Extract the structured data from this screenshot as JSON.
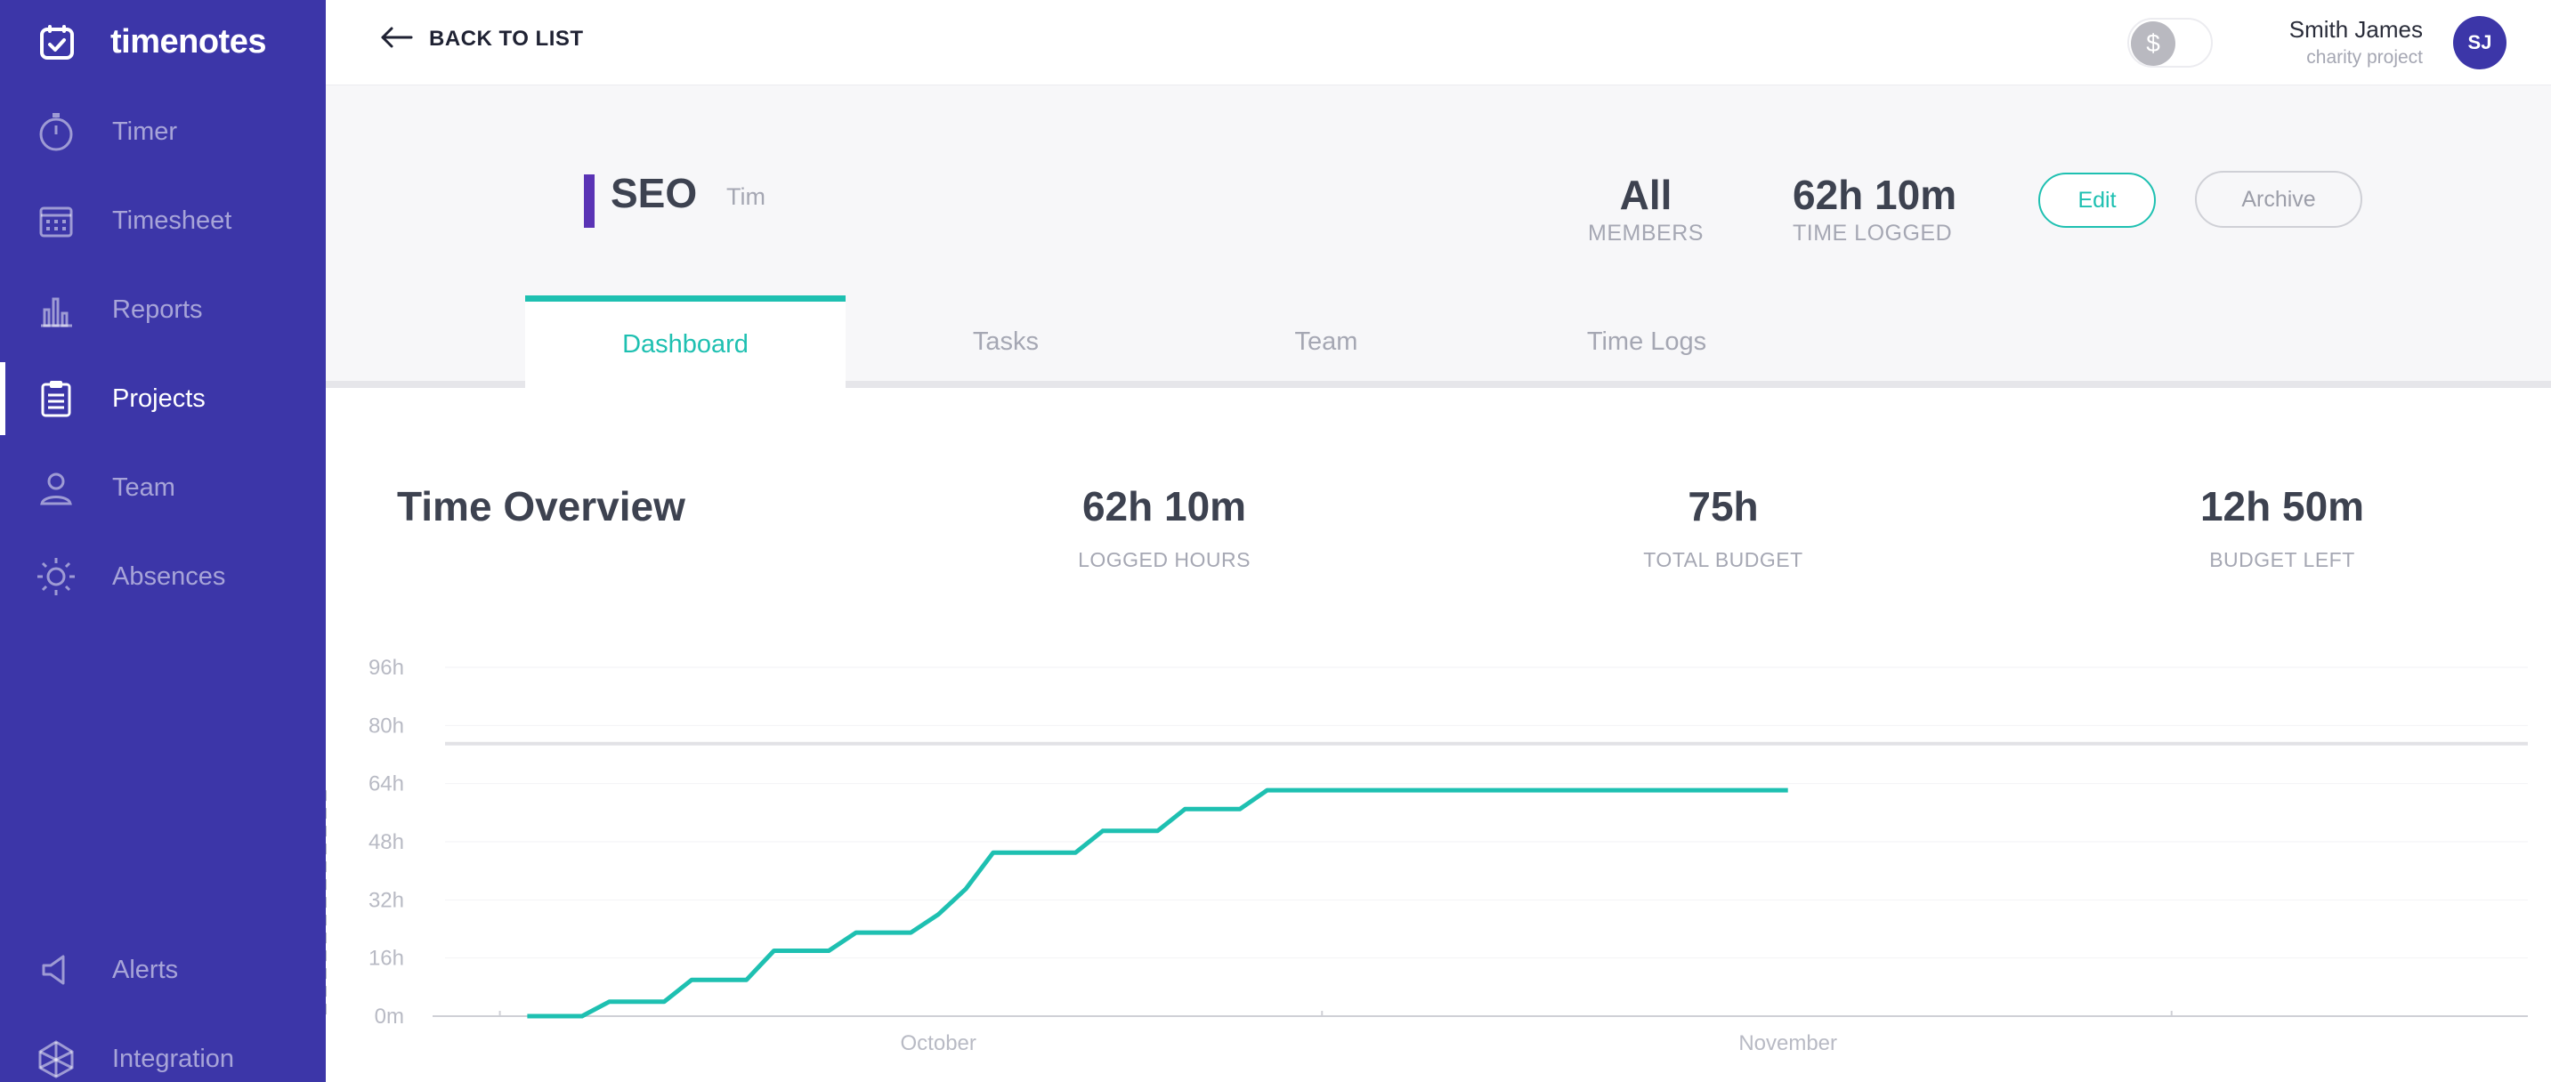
{
  "app": {
    "name": "timenotes"
  },
  "sidebar": {
    "items": [
      {
        "label": "Timer",
        "icon": "stopwatch-icon",
        "active": false
      },
      {
        "label": "Timesheet",
        "icon": "calendar-icon",
        "active": false
      },
      {
        "label": "Reports",
        "icon": "bar-chart-icon",
        "active": false
      },
      {
        "label": "Projects",
        "icon": "clipboard-icon",
        "active": true
      },
      {
        "label": "Team",
        "icon": "person-icon",
        "active": false
      },
      {
        "label": "Absences",
        "icon": "sun-icon",
        "active": false
      }
    ],
    "bottom_items": [
      {
        "label": "Alerts",
        "icon": "megaphone-icon"
      },
      {
        "label": "Integration",
        "icon": "integration-icon"
      }
    ]
  },
  "topbar": {
    "back_label": "BACK TO LIST",
    "billable_toggle": {
      "symbol": "$",
      "on": false
    },
    "user": {
      "name": "Smith James",
      "subtitle": "charity project",
      "initials": "SJ"
    }
  },
  "project": {
    "name": "SEO",
    "client": "Tim",
    "color": "#5a33b5",
    "members_value": "All",
    "members_label": "MEMBERS",
    "logged_value": "62h 10m",
    "logged_label": "TIME LOGGED",
    "edit_label": "Edit",
    "archive_label": "Archive"
  },
  "tabs": [
    {
      "label": "Dashboard",
      "active": true
    },
    {
      "label": "Tasks",
      "active": false
    },
    {
      "label": "Team",
      "active": false
    },
    {
      "label": "Time Logs",
      "active": false
    }
  ],
  "overview": {
    "title": "Time Overview",
    "metrics": [
      {
        "value": "62h 10m",
        "label": "LOGGED HOURS"
      },
      {
        "value": "75h",
        "label": "TOTAL BUDGET"
      },
      {
        "value": "12h 50m",
        "label": "BUDGET LEFT"
      }
    ]
  },
  "colors": {
    "sidebar": "#3c36a8",
    "accent": "#1ec0b1",
    "budget_line": "#e2e2e6"
  },
  "chart_data": {
    "type": "line",
    "title": "",
    "xlabel": "",
    "ylabel": "",
    "x_ticks": [
      "October",
      "November"
    ],
    "y_ticks": [
      "0m",
      "16h",
      "32h",
      "48h",
      "64h",
      "80h",
      "96h"
    ],
    "ylim": [
      0,
      96
    ],
    "grid": true,
    "budget_hours": 75,
    "today_marker": "November 1",
    "series": [
      {
        "x": [
          "Sep 16",
          "Sep 17",
          "Sep 18",
          "Sep 19",
          "Sep 20",
          "Sep 21",
          "Sep 22",
          "Sep 23",
          "Sep 24",
          "Sep 25",
          "Sep 26",
          "Sep 27",
          "Sep 28",
          "Sep 29",
          "Sep 30",
          "Oct 1",
          "Oct 2",
          "Oct 3",
          "Oct 4",
          "Oct 5",
          "Oct 6",
          "Oct 7",
          "Oct 8",
          "Oct 9",
          "Oct 10",
          "Oct 11",
          "Oct 12",
          "Oct 13",
          "Oct 14",
          "Oct 15",
          "Oct 16",
          "Oct 17",
          "Oct 18",
          "Nov 1"
        ],
        "values": [
          0,
          0,
          0,
          4,
          4,
          4,
          10,
          10,
          10,
          18,
          18,
          18,
          23,
          23,
          23,
          28,
          35,
          45,
          45,
          45,
          45,
          51,
          51,
          51,
          57,
          57,
          57,
          62.17,
          62.17,
          62.17,
          62.17,
          62.17,
          62.17,
          62.17
        ]
      }
    ]
  }
}
